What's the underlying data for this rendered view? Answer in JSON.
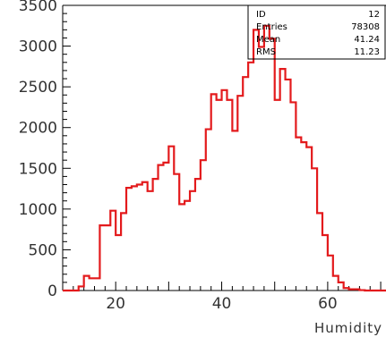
{
  "chart_data": {
    "type": "histogram",
    "title": "",
    "xlabel": "Humidity",
    "ylabel": "",
    "xlim": [
      10,
      71
    ],
    "ylim": [
      0,
      3500
    ],
    "x_ticks": [
      20,
      40,
      60
    ],
    "y_ticks": [
      0,
      500,
      1000,
      1500,
      2000,
      2500,
      3000,
      3500
    ],
    "bin_width": 1,
    "bins_start": 10,
    "values": [
      0,
      0,
      0,
      50,
      180,
      150,
      150,
      800,
      800,
      980,
      680,
      950,
      1260,
      1280,
      1300,
      1330,
      1220,
      1370,
      1540,
      1570,
      1770,
      1430,
      1060,
      1100,
      1220,
      1370,
      1600,
      1980,
      2410,
      2340,
      2460,
      2340,
      1960,
      2390,
      2620,
      2800,
      3200,
      2990,
      3250,
      3090,
      2340,
      2720,
      2590,
      2310,
      1880,
      1820,
      1760,
      1500,
      950,
      680,
      430,
      180,
      100,
      30,
      15,
      15,
      5,
      0,
      0,
      0,
      0
    ],
    "line_color": "#e31a1c",
    "stats_box": {
      "ID": "12",
      "Entries": "78308",
      "Mean": "41.24",
      "RMS": "11.23"
    }
  }
}
